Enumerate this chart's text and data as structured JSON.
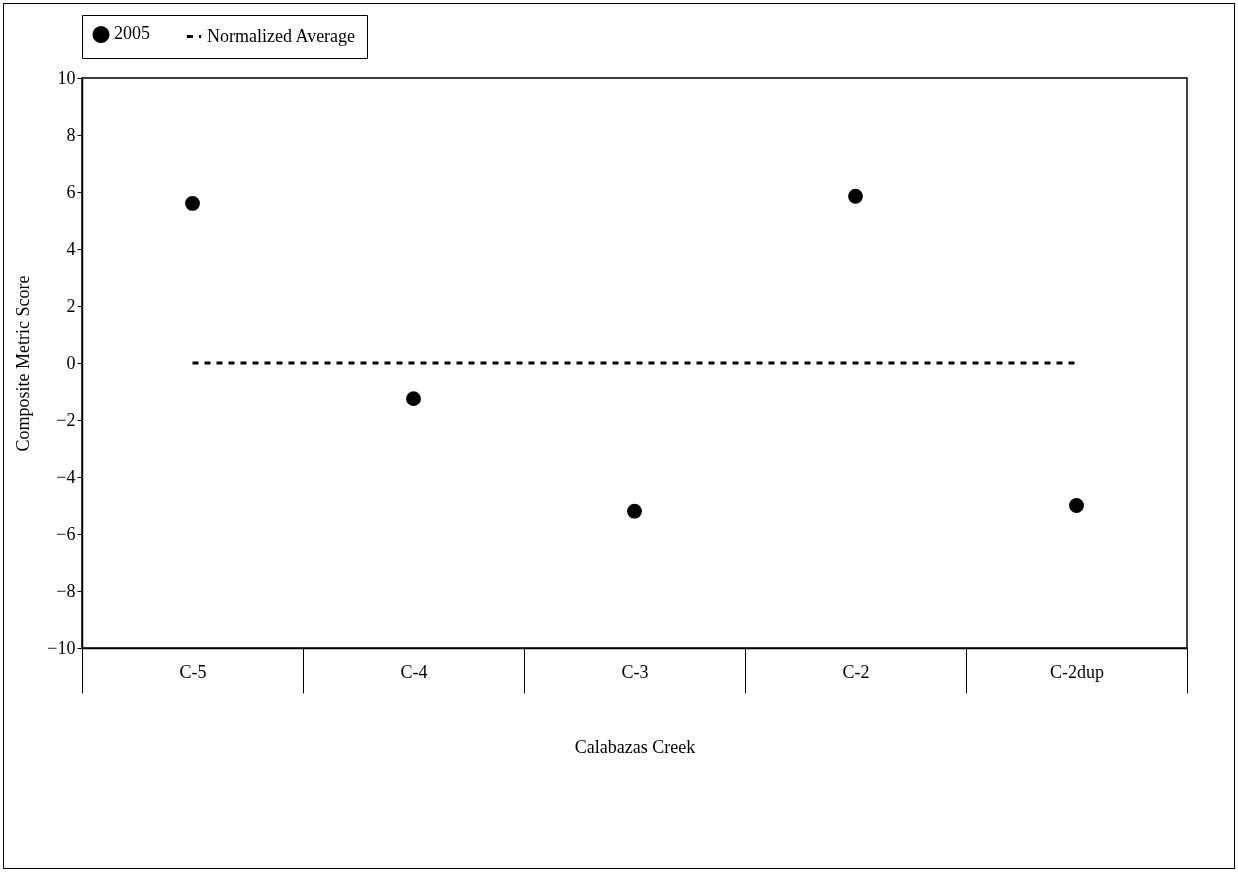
{
  "chart_data": {
    "type": "scatter",
    "xlabel": "Calabazas Creek",
    "ylabel": "Composite Metric Score",
    "categories": [
      "C-5",
      "C-4",
      "C-3",
      "C-2",
      "C-2dup"
    ],
    "series": [
      {
        "name": "2005",
        "color": "#000000",
        "marker": "circle",
        "values": [
          5.6,
          -1.25,
          -5.2,
          5.85,
          -5.0
        ]
      },
      {
        "name": "Normalized Average",
        "type": "line",
        "color": "#000000",
        "line_style": "dashed",
        "values": [
          0,
          0,
          0,
          0,
          0
        ]
      }
    ],
    "ylim": [
      -10,
      10
    ],
    "yticks": [
      -10,
      -8,
      -6,
      -4,
      -2,
      0,
      2,
      4,
      6,
      8,
      10
    ],
    "grid": false,
    "legend": "top"
  }
}
